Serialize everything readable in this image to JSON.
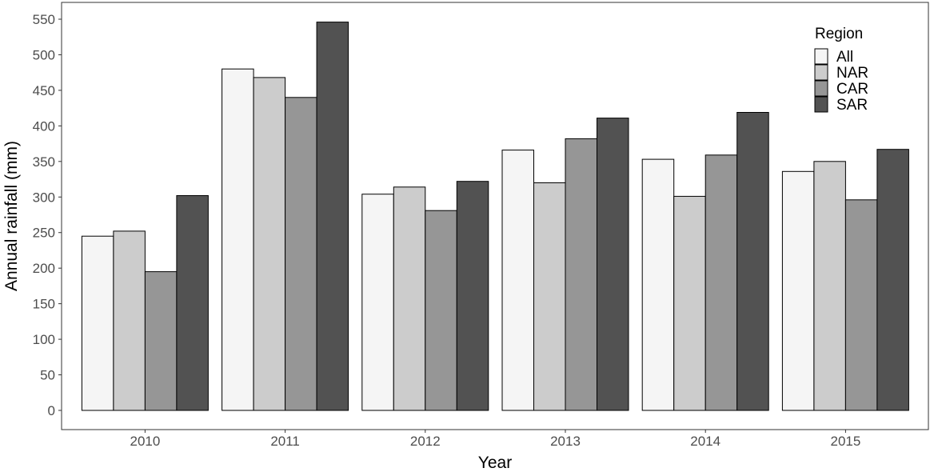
{
  "chart_data": {
    "type": "bar",
    "xlabel": "Year",
    "ylabel": "Annual rainfall (mm)",
    "categories": [
      "2010",
      "2011",
      "2012",
      "2013",
      "2014",
      "2015"
    ],
    "ylim": [
      0,
      570
    ],
    "yticks": [
      0,
      50,
      100,
      150,
      200,
      250,
      300,
      350,
      400,
      450,
      500,
      550
    ],
    "grid": false,
    "legend": {
      "title": "Region",
      "position": "top-right"
    },
    "series": [
      {
        "name": "All",
        "color": "#f5f5f5",
        "values": [
          245,
          480,
          304,
          366,
          353,
          336
        ]
      },
      {
        "name": "NAR",
        "color": "#cccccc",
        "values": [
          252,
          468,
          314,
          320,
          301,
          350
        ]
      },
      {
        "name": "CAR",
        "color": "#969696",
        "values": [
          195,
          440,
          281,
          382,
          359,
          296
        ]
      },
      {
        "name": "SAR",
        "color": "#525252",
        "values": [
          302,
          546,
          322,
          411,
          419,
          367
        ]
      }
    ]
  }
}
